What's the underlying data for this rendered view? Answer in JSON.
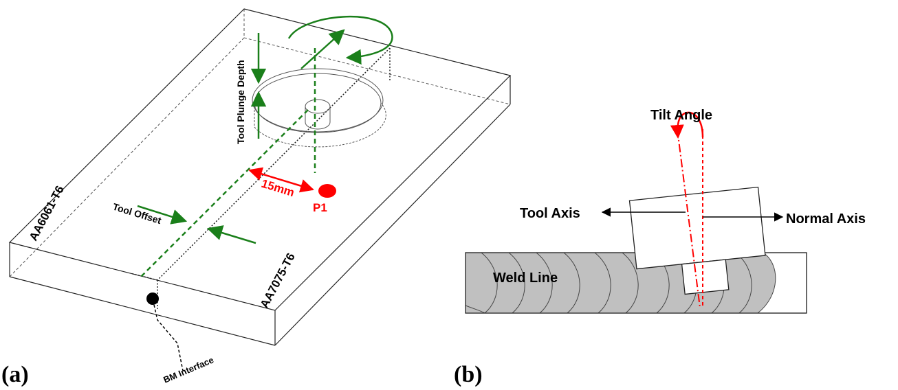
{
  "panel_a": {
    "label": "(a)",
    "plunge_label": "Tool Plunge Depth",
    "offset_label": "Tool Offset",
    "distance_label": "15mm",
    "point_label": "P1",
    "left_plate_label": "AA6061-T6",
    "right_plate_label": "AA7075-T6",
    "interface_label": "BM Interface",
    "colors": {
      "arrow": "#1a7f1a",
      "highlight": "#ff0000"
    }
  },
  "panel_b": {
    "label": "(b)",
    "tilt_label": "Tilt Angle",
    "tool_axis_label": "Tool Axis",
    "normal_axis_label": "Normal Axis",
    "weld_label": "Weld Line",
    "colors": {
      "weld": "#c0c0c0",
      "highlight": "#ff0000"
    }
  }
}
